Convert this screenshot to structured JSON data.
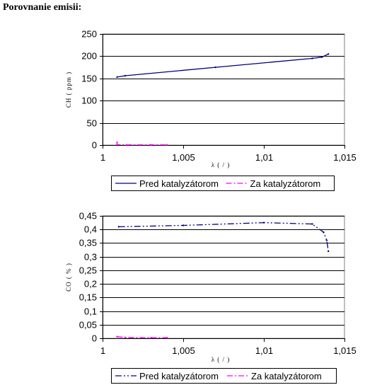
{
  "heading": "Porovnanie emisii:",
  "colors": {
    "navy": "#000080",
    "magenta": "#ff00ff"
  },
  "chart_data": [
    {
      "type": "line",
      "xlabel": "λ ( / )",
      "ylabel": "CH ( ppm )",
      "xlim": [
        1,
        1.015
      ],
      "ylim": [
        0,
        250
      ],
      "xticks": [
        "1",
        "1,005",
        "1,01",
        "1,015"
      ],
      "yticks": [
        "0",
        "50",
        "100",
        "150",
        "200",
        "250"
      ],
      "xtick_values": [
        1,
        1.005,
        1.01,
        1.015
      ],
      "ytick_values": [
        0,
        50,
        100,
        150,
        200,
        250
      ],
      "grid": "horizontal",
      "legend": "bottom",
      "series": [
        {
          "name": "Pred katalyzátorom",
          "color": "#000080",
          "dash": "",
          "points": [
            [
              1.0009,
              153
            ],
            [
              1.0014,
              156
            ],
            [
              1.007,
              175
            ],
            [
              1.013,
              195
            ],
            [
              1.0136,
              198
            ],
            [
              1.014,
              205
            ]
          ]
        },
        {
          "name": "Za katalyzátorom",
          "color": "#ff00ff",
          "dash": "8 3 2 3",
          "points": [
            [
              1.0009,
              6
            ],
            [
              1.0009,
              1
            ],
            [
              1.0015,
              0.5
            ],
            [
              1.003,
              0.5
            ],
            [
              1.004,
              0.5
            ]
          ]
        }
      ]
    },
    {
      "type": "line",
      "xlabel": "λ ( / )",
      "ylabel": "CO ( % )",
      "xlim": [
        1,
        1.015
      ],
      "ylim": [
        0,
        0.45
      ],
      "xticks": [
        "1",
        "1,005",
        "1,01",
        "1,015"
      ],
      "yticks": [
        "0",
        "0,05",
        "0,1",
        "0,15",
        "0,2",
        "0,25",
        "0,3",
        "0,35",
        "0,4",
        "0,45"
      ],
      "xtick_values": [
        1,
        1.005,
        1.01,
        1.015
      ],
      "ytick_values": [
        0,
        0.05,
        0.1,
        0.15,
        0.2,
        0.25,
        0.3,
        0.35,
        0.4,
        0.45
      ],
      "grid": "horizontal",
      "legend": "bottom",
      "series": [
        {
          "name": "Pred katalyzátorom",
          "color": "#000080",
          "dash": "9 3 2 3 2 3",
          "points": [
            [
              1.001,
              0.41
            ],
            [
              1.005,
              0.415
            ],
            [
              1.01,
              0.425
            ],
            [
              1.013,
              0.42
            ],
            [
              1.0137,
              0.39
            ],
            [
              1.0139,
              0.36
            ],
            [
              1.014,
              0.32
            ]
          ]
        },
        {
          "name": "Za katalyzátorom",
          "color": "#ff00ff",
          "dash": "8 3 2 3",
          "points": [
            [
              1.0009,
              0.006
            ],
            [
              1.0014,
              0.003
            ],
            [
              1.003,
              0.002
            ],
            [
              1.004,
              0.002
            ]
          ]
        }
      ]
    }
  ]
}
